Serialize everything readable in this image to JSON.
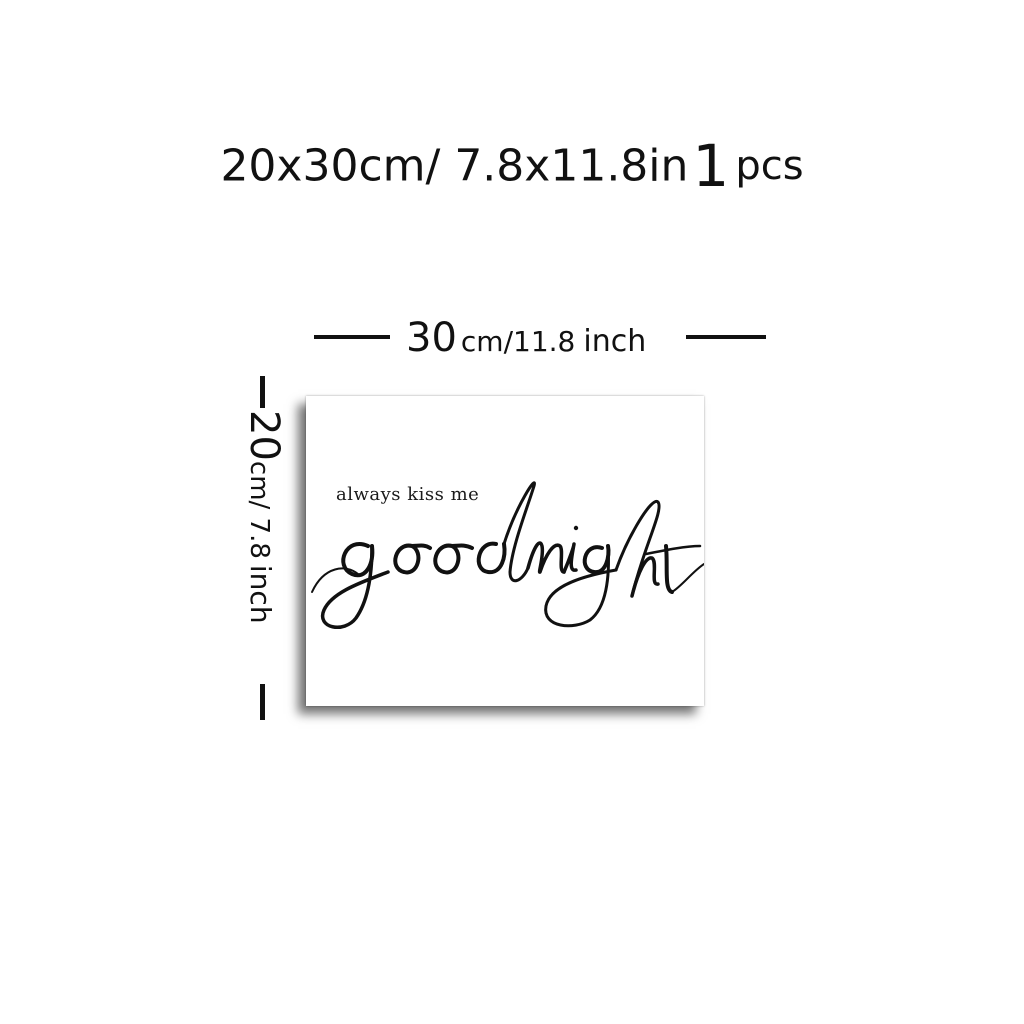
{
  "title": {
    "size_text": "20x30cm/ 7.8x11.8in",
    "count": "1",
    "unit": "pcs"
  },
  "width_dimension": {
    "value": "30",
    "unit_cm": "cm/11.8",
    "unit_inch": "inch"
  },
  "height_dimension": {
    "value": "20",
    "unit_cm": "cm/ 7.8",
    "unit_inch": "inch"
  },
  "print": {
    "small_line": "always kiss me",
    "script_word": "goodnight"
  }
}
